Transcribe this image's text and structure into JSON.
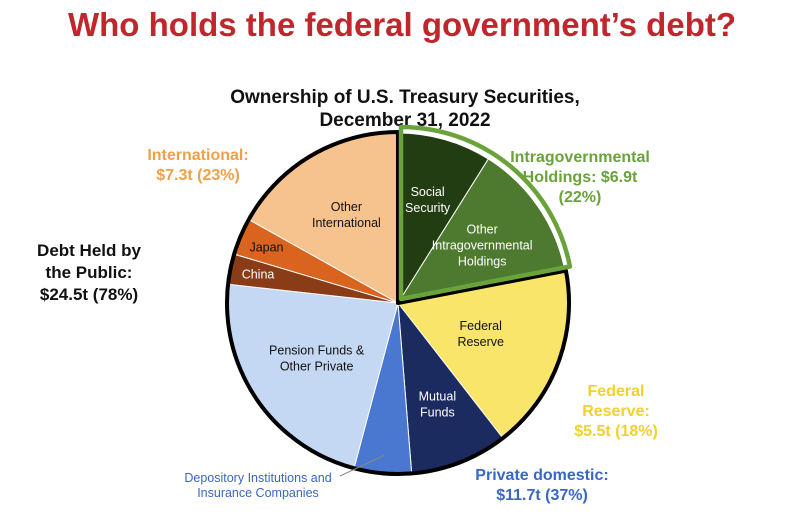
{
  "header": {
    "title": "Who holds the federal government’s debt?"
  },
  "chart_data": {
    "type": "pie",
    "title": "Ownership of U.S. Treasury Securities,",
    "subtitle": "December 31, 2022",
    "slices": [
      {
        "label": [
          "Social",
          "Security"
        ],
        "value": 2.8,
        "color": "#223d12",
        "text_color": "#ffffff",
        "group": "intragov"
      },
      {
        "label": [
          "Other",
          "Intragovernmental",
          "Holdings"
        ],
        "value": 4.1,
        "color": "#4d7a2f",
        "text_color": "#ffffff",
        "group": "intragov"
      },
      {
        "label": [
          "Federal",
          "Reserve"
        ],
        "value": 5.5,
        "color": "#f9e56a",
        "text_color": "#111111",
        "group": "fed"
      },
      {
        "label": [
          "Mutual",
          "Funds"
        ],
        "value": 2.9,
        "color": "#1b2b5f",
        "text_color": "#ffffff",
        "group": "domestic"
      },
      {
        "label": [],
        "value": 1.7,
        "color": "#4a78d0",
        "text_color": "#ffffff",
        "group": "domestic"
      },
      {
        "label": [
          "Pension Funds &",
          "Other Private"
        ],
        "value": 7.1,
        "color": "#c5d8f3",
        "text_color": "#111111",
        "group": "domestic"
      },
      {
        "label": [
          "China"
        ],
        "value": 0.9,
        "color": "#8a3c17",
        "text_color": "#ffffff",
        "group": "international"
      },
      {
        "label": [
          "Japan"
        ],
        "value": 1.1,
        "color": "#d8641f",
        "text_color": "#111111",
        "group": "international"
      },
      {
        "label": [
          "Other",
          "International"
        ],
        "value": 5.3,
        "color": "#f6c28e",
        "text_color": "#111111",
        "group": "international"
      }
    ],
    "external_label": [
      "Depository Institutions and",
      "Insurance Companies"
    ],
    "callouts": {
      "international": {
        "lines": [
          "International:",
          "$7.3t (23%)"
        ],
        "color": "#f0a04b"
      },
      "intragov": {
        "lines": [
          "Intragovernmental",
          "Holdings: $6.9t",
          "(22%)"
        ],
        "color": "#6aa33a"
      },
      "public": {
        "lines": [
          "Debt Held by",
          "the Public:",
          "$24.5t (78%)"
        ],
        "color": "#111111"
      },
      "fed": {
        "lines": [
          "Federal",
          "Reserve:",
          "$5.5t (18%)"
        ],
        "color": "#f2d12e"
      },
      "domestic": {
        "lines": [
          "Private domestic:",
          "$11.7t (37%)"
        ],
        "color": "#3a66c4"
      }
    },
    "outline_colors": {
      "public": "#000000",
      "intragov": "#6aa33a"
    }
  }
}
